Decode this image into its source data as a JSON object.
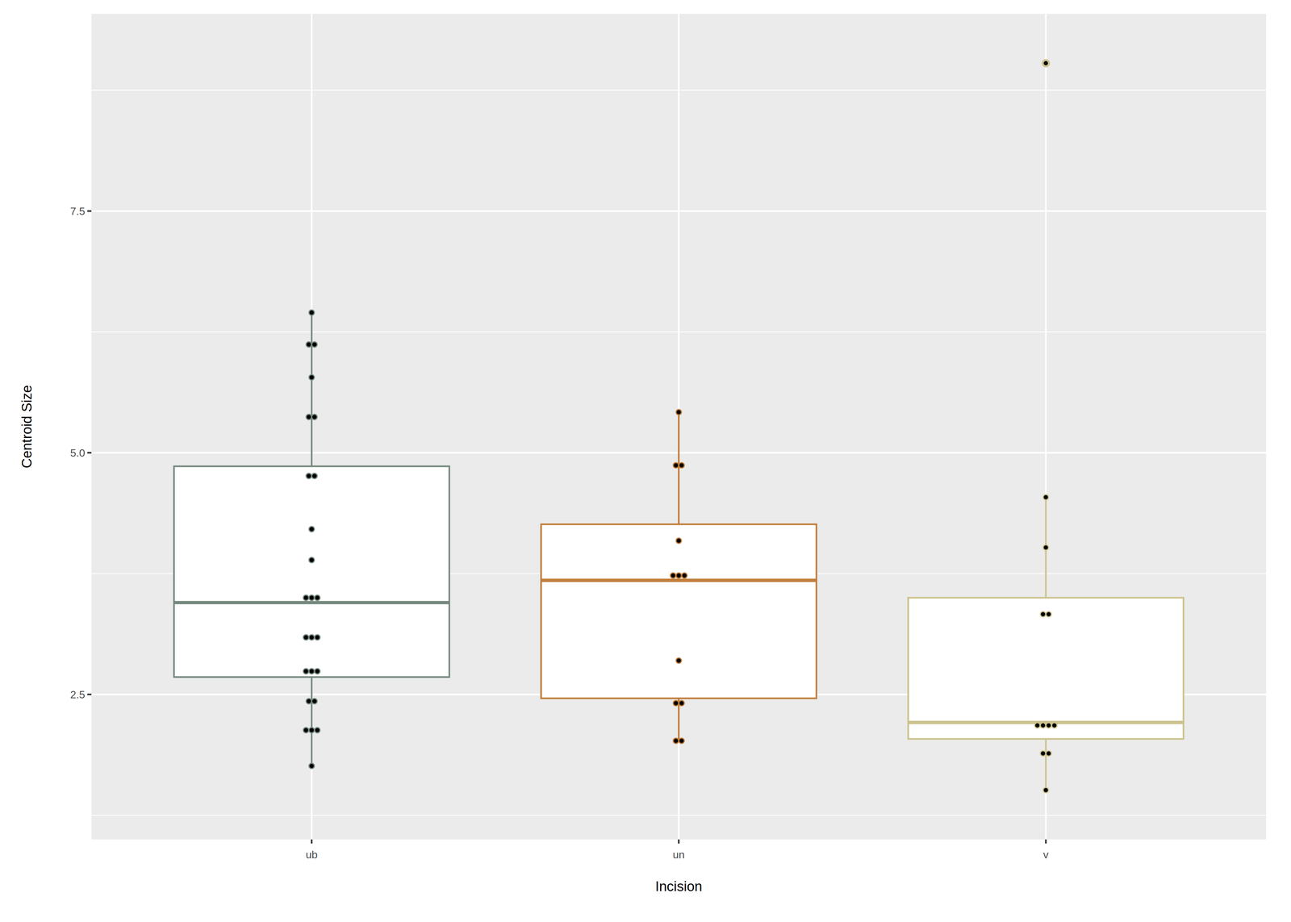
{
  "chart_data": {
    "type": "boxplot",
    "x_label": "Incision",
    "y_label": "Centroid Size",
    "categories": [
      "ub",
      "un",
      "v"
    ],
    "ylim": [
      1.0,
      9.54
    ],
    "yticks": [
      2.5,
      {
        "value": 5,
        "label": "5.0"
      },
      7.5
    ],
    "grid": true,
    "series": [
      {
        "color": "#76897f",
        "q1": 2.68,
        "median": 3.45,
        "q3": 4.86,
        "whisker_low": 1.76,
        "whisker_high": 6.45,
        "outliers": [],
        "points": [
          6.45,
          6.12,
          6.12,
          5.78,
          5.37,
          5.37,
          4.76,
          4.76,
          4.21,
          3.89,
          3.5,
          3.5,
          3.5,
          3.09,
          3.09,
          3.09,
          2.74,
          2.74,
          2.74,
          2.43,
          2.43,
          2.13,
          2.13,
          2.13,
          1.76
        ]
      },
      {
        "color": "#c17d3b",
        "q1": 2.46,
        "median": 3.68,
        "q3": 4.26,
        "whisker_low": 2.02,
        "whisker_high": 5.42,
        "outliers": [],
        "points": [
          5.42,
          4.87,
          4.87,
          4.09,
          3.73,
          3.73,
          3.73,
          2.85,
          2.41,
          2.41,
          2.02,
          2.02
        ]
      },
      {
        "color": "#cbc28d",
        "q1": 2.04,
        "median": 2.21,
        "q3": 3.5,
        "whisker_low": 1.51,
        "whisker_high": 4.54,
        "outliers": [
          9.03
        ],
        "points": [
          9.03,
          4.54,
          4.02,
          3.33,
          3.33,
          2.18,
          2.18,
          2.18,
          2.18,
          1.89,
          1.89,
          1.51
        ]
      }
    ]
  }
}
